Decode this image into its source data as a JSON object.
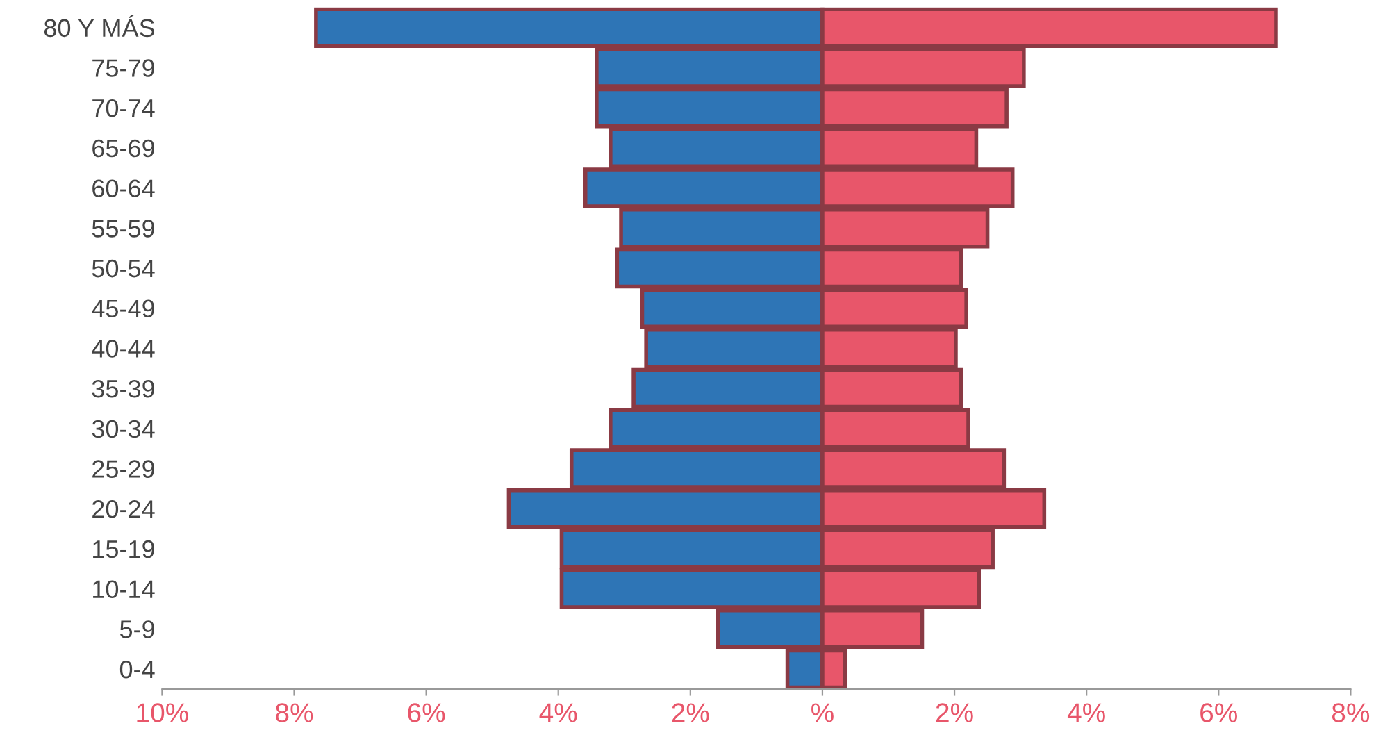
{
  "chart_data": {
    "type": "bar",
    "orientation": "horizontal",
    "stacked": true,
    "categories": [
      "80 Y MÁS",
      "75-79",
      "70-74",
      "65-69",
      "60-64",
      "55-59",
      "50-54",
      "45-49",
      "40-44",
      "35-39",
      "30-34",
      "25-29",
      "20-24",
      "15-19",
      "10-14",
      "5-9",
      "0-4"
    ],
    "series": [
      {
        "color": "#2e75b6",
        "values": [
          -7.67,
          -3.42,
          -3.42,
          -3.21,
          -3.59,
          -3.05,
          -3.11,
          -2.73,
          -2.67,
          -2.86,
          -3.21,
          -3.8,
          -4.75,
          -3.95,
          -3.95,
          -1.58,
          -0.53
        ]
      },
      {
        "color": "#e8566a",
        "values": [
          6.87,
          3.05,
          2.79,
          2.33,
          2.88,
          2.5,
          2.1,
          2.18,
          2.02,
          2.1,
          2.21,
          2.75,
          3.36,
          2.58,
          2.37,
          1.51,
          0.34
        ]
      }
    ],
    "xlim": [
      -10,
      8
    ],
    "xticks": [
      {
        "value": -10,
        "label": "10%"
      },
      {
        "value": -8,
        "label": "8%"
      },
      {
        "value": -6,
        "label": "6%"
      },
      {
        "value": -4,
        "label": "4%"
      },
      {
        "value": -2,
        "label": "2%"
      },
      {
        "value": 0,
        "label": "%"
      },
      {
        "value": 2,
        "label": "2%"
      },
      {
        "value": 4,
        "label": "4%"
      },
      {
        "value": 6,
        "label": "6%"
      },
      {
        "value": 8,
        "label": "8%"
      }
    ],
    "grid": false
  }
}
